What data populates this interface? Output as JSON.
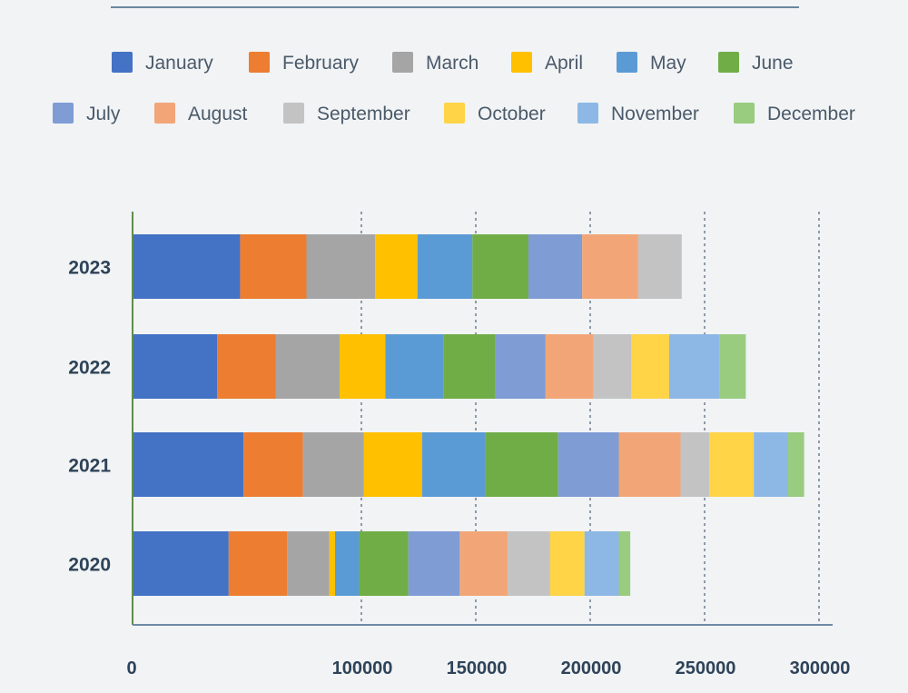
{
  "chart_data": {
    "type": "bar",
    "orientation": "horizontal",
    "stacked": true,
    "title": "",
    "xlabel": "",
    "ylabel": "",
    "categories": [
      "2023",
      "2022",
      "2021",
      "2020"
    ],
    "xlim": [
      0,
      300000
    ],
    "xticks": [
      0,
      100000,
      150000,
      200000,
      250000,
      300000
    ],
    "xtick_labels": [
      "0",
      "100000",
      "150000",
      "200000",
      "250000",
      "300000"
    ],
    "grid": "vertical-dotted",
    "legend_position": "top",
    "series": [
      {
        "name": "January",
        "color": "#4472c4",
        "values": [
          47000,
          37000,
          48500,
          42000
        ]
      },
      {
        "name": "February",
        "color": "#ed7d31",
        "values": [
          29000,
          25500,
          26000,
          25500
        ]
      },
      {
        "name": "March",
        "color": "#a5a5a5",
        "values": [
          30000,
          28000,
          26500,
          18500
        ]
      },
      {
        "name": "April",
        "color": "#ffc000",
        "values": [
          18500,
          20000,
          25500,
          2500
        ]
      },
      {
        "name": "May",
        "color": "#5b9bd5",
        "values": [
          24000,
          25500,
          27500,
          10500
        ]
      },
      {
        "name": "June",
        "color": "#70ad47",
        "values": [
          24500,
          22500,
          32000,
          21500
        ]
      },
      {
        "name": "July",
        "color": "#7f9cd5",
        "values": [
          23500,
          22000,
          26500,
          22500
        ]
      },
      {
        "name": "August",
        "color": "#f2a678",
        "values": [
          24500,
          21000,
          27000,
          21000
        ]
      },
      {
        "name": "September",
        "color": "#c3c3c3",
        "values": [
          19000,
          16500,
          12500,
          18500
        ]
      },
      {
        "name": "October",
        "color": "#ffd447",
        "values": [
          0,
          16500,
          19500,
          15000
        ]
      },
      {
        "name": "November",
        "color": "#8db8e6",
        "values": [
          0,
          22000,
          15000,
          15000
        ]
      },
      {
        "name": "December",
        "color": "#99cc7f",
        "values": [
          0,
          11500,
          7000,
          5000
        ]
      }
    ]
  }
}
